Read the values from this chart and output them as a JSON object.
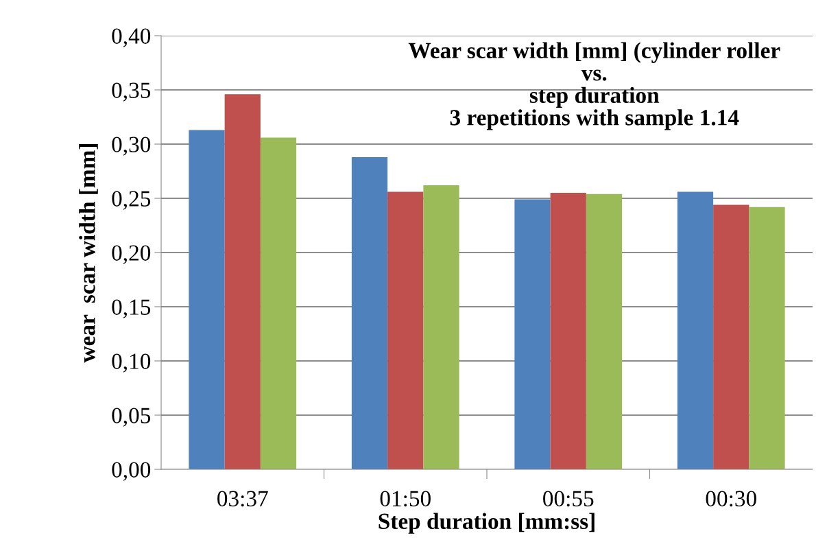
{
  "chart_data": {
    "type": "bar",
    "title": "Wear scar width [mm] (cylinder roller\nvs.\nstep duration\n3 repetitions with sample 1.14",
    "xlabel": "Step duration [mm:ss]",
    "ylabel": "wear  scar width [mm]",
    "categories": [
      "03:37",
      "01:50",
      "00:55",
      "00:30"
    ],
    "series": [
      {
        "color": "#4f81bd",
        "values": [
          0.313,
          0.288,
          0.249,
          0.256
        ]
      },
      {
        "color": "#c0504d",
        "values": [
          0.346,
          0.256,
          0.255,
          0.244
        ]
      },
      {
        "color": "#9bbb59",
        "values": [
          0.306,
          0.262,
          0.254,
          0.242
        ]
      }
    ],
    "ylim": [
      0,
      0.4
    ],
    "yticks": [
      {
        "value": 0,
        "label": "0,00"
      },
      {
        "value": 0.05,
        "label": "0,05"
      },
      {
        "value": 0.1,
        "label": "0,10"
      },
      {
        "value": 0.15,
        "label": "0,15"
      },
      {
        "value": 0.2,
        "label": "0,20"
      },
      {
        "value": 0.25,
        "label": "0,25"
      },
      {
        "value": 0.3,
        "label": "0,30"
      },
      {
        "value": 0.35,
        "label": "0,35"
      },
      {
        "value": 0.4,
        "label": "0,40"
      }
    ],
    "grid": "y",
    "legend": false
  }
}
